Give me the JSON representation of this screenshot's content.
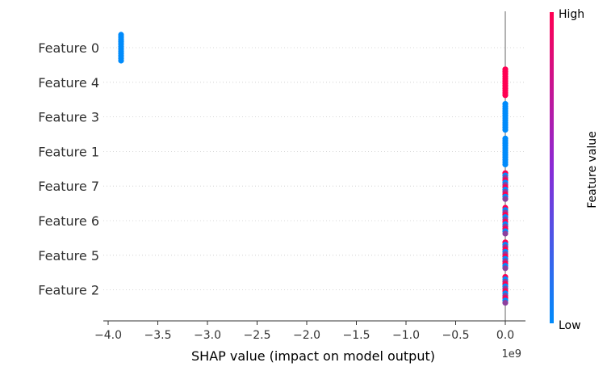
{
  "chart_data": {
    "type": "scatter",
    "subtype": "shap-beeswarm-summary",
    "xlabel": "SHAP value (impact on model output)",
    "x_offset_label": "1e9",
    "xlim": [
      -4.1,
      0.2
    ],
    "xticks": [
      {
        "value": -4.0,
        "label": "−4.0"
      },
      {
        "value": -3.5,
        "label": "−3.5"
      },
      {
        "value": -3.0,
        "label": "−3.0"
      },
      {
        "value": -2.5,
        "label": "−2.5"
      },
      {
        "value": -2.0,
        "label": "−2.0"
      },
      {
        "value": -1.5,
        "label": "−1.5"
      },
      {
        "value": -1.0,
        "label": "−1.0"
      },
      {
        "value": -0.5,
        "label": "−0.5"
      },
      {
        "value": 0.0,
        "label": "0.0"
      }
    ],
    "zero_line": true,
    "grid": "dotted horizontal per feature",
    "features": [
      {
        "name": "Feature 0",
        "x": -3.87,
        "color_low": 1.0,
        "color_high": 0.0
      },
      {
        "name": "Feature 4",
        "x": 0.0,
        "color_low": 0.0,
        "color_high": 1.0
      },
      {
        "name": "Feature 3",
        "x": 0.0,
        "color_low": 1.0,
        "color_high": 0.0
      },
      {
        "name": "Feature 1",
        "x": 0.0,
        "color_low": 1.0,
        "color_high": 0.0
      },
      {
        "name": "Feature 7",
        "x": 0.0,
        "color_low": 0.5,
        "color_high": 0.5
      },
      {
        "name": "Feature 6",
        "x": 0.0,
        "color_low": 0.5,
        "color_high": 0.5
      },
      {
        "name": "Feature 5",
        "x": 0.0,
        "color_low": 0.5,
        "color_high": 0.5
      },
      {
        "name": "Feature 2",
        "x": 0.0,
        "color_low": 0.6,
        "color_high": 0.4
      }
    ],
    "colorbar": {
      "title": "Feature value",
      "high_label": "High",
      "low_label": "Low",
      "low_color": "#008bfb",
      "high_color": "#ff0052"
    }
  }
}
